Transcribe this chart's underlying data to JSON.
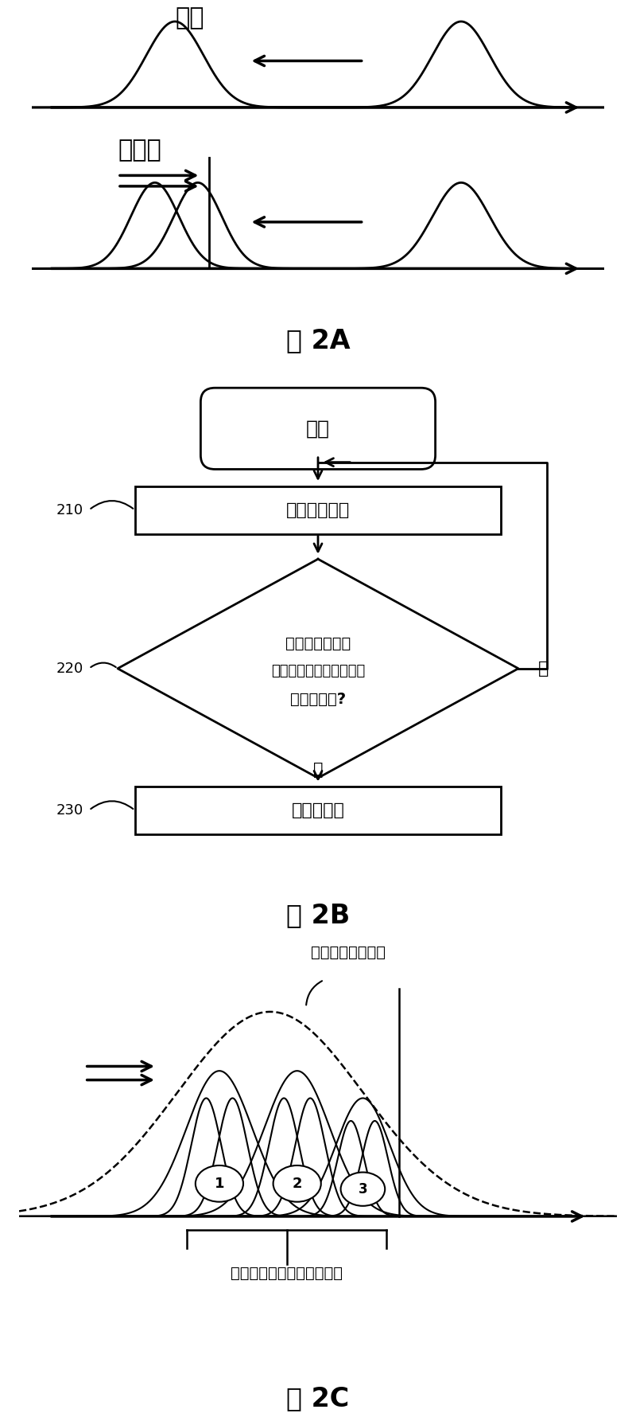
{
  "fig2a_label": "图 2A",
  "fig2b_label": "图 2B",
  "fig2c_label": "图 2C",
  "erase_label": "擦除",
  "soft_prog_label": "软编程",
  "start_label": "开始",
  "step210_label": "传送编程脉冲",
  "step220_line1": "至少一个单元串",
  "step220_line2": "被编程到大于验证电压的",
  "step220_line3": "阀値电压吗?",
  "yes_label": "是",
  "no_label": "否",
  "step230_label": "结束软编程",
  "block_dist_label": "块的阀値电压分布",
  "string_dist_label": "每个单元串的阀値电压分布",
  "step210_num": "210",
  "step220_num": "220",
  "step230_num": "230",
  "bg_color": "#ffffff",
  "fg_color": "#000000"
}
